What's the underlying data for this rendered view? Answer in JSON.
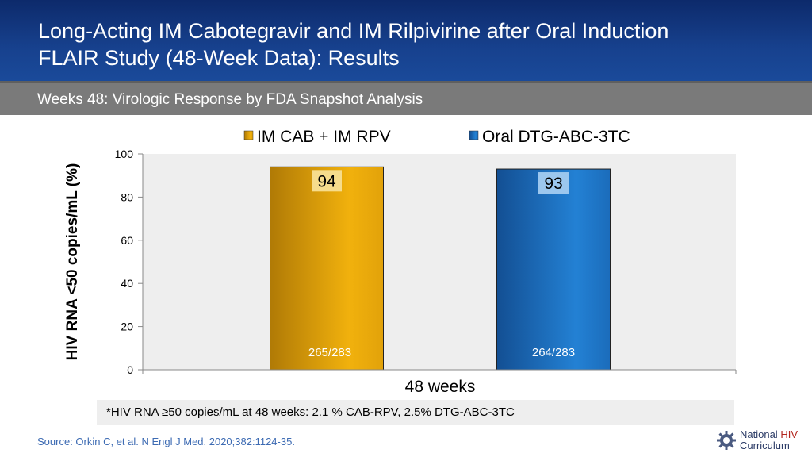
{
  "header": {
    "title_line1": "Long-Acting IM Cabotegravir and IM Rilpivirine after Oral Induction",
    "title_line2": "FLAIR Study (48-Week Data): Results"
  },
  "subtitle": "Weeks 48: Virologic Response by FDA Snapshot Analysis",
  "chart_data": {
    "type": "bar",
    "categories": [
      "48 weeks"
    ],
    "series": [
      {
        "name": "IM CAB + IM RPV",
        "values": [
          94
        ],
        "count_label": "265/283",
        "color": "#e0a00a"
      },
      {
        "name": "Oral DTG-ABC-3TC",
        "values": [
          93
        ],
        "count_label": "264/283",
        "color": "#1f74c4"
      }
    ],
    "title": "",
    "xlabel": "48 weeks",
    "ylabel": "HIV RNA <50 copies/mL (%)",
    "ylim": [
      0,
      100
    ],
    "yticks": [
      0,
      20,
      40,
      60,
      80,
      100
    ],
    "legend": "top"
  },
  "footnote": "*HIV RNA ≥50 copies/mL at 48 weeks: 2.1 % CAB-RPV, 2.5% DTG-ABC-3TC",
  "source": "Source: Orkin C, et al. N Engl J Med. 2020;382:1124-35.",
  "logo": {
    "line1_a": "National ",
    "line1_b": "HIV",
    "line2": "Curriculum"
  }
}
